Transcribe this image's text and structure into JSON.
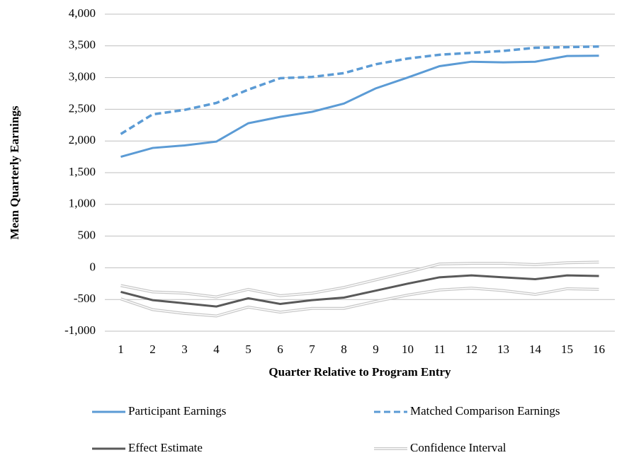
{
  "chart_data": {
    "type": "line",
    "y_label": "Mean Quarterly Earnings",
    "x_label": "Quarter Relative to Program Entry",
    "categories": [
      "1",
      "2",
      "3",
      "4",
      "5",
      "6",
      "7",
      "8",
      "9",
      "10",
      "11",
      "12",
      "13",
      "14",
      "15",
      "16"
    ],
    "ylim": [
      -1000,
      4000
    ],
    "yticks": [
      {
        "value": -1000,
        "label": "-1,000"
      },
      -500,
      0,
      500,
      {
        "value": 1000,
        "label": "1,000"
      },
      {
        "value": 1500,
        "label": "1,500"
      },
      {
        "value": 2000,
        "label": "2,000"
      },
      {
        "value": 2500,
        "label": "2,500"
      },
      {
        "value": 3000,
        "label": "3,000"
      },
      {
        "value": 3500,
        "label": "3,500"
      },
      {
        "value": 4000,
        "label": "4,000"
      }
    ],
    "grid": true,
    "series": [
      {
        "name": "Participant Earnings",
        "color": "#5b9bd5",
        "style": "solid",
        "values": [
          1750,
          1890,
          1930,
          1990,
          2280,
          2380,
          2460,
          2590,
          2830,
          3000,
          3180,
          3250,
          3240,
          3250,
          3340,
          3345
        ]
      },
      {
        "name": "Matched Comparison Earnings",
        "color": "#5b9bd5",
        "style": "dashed",
        "values": [
          2110,
          2420,
          2490,
          2600,
          2810,
          2990,
          3010,
          3070,
          3210,
          3300,
          3360,
          3390,
          3420,
          3470,
          3480,
          3490
        ]
      },
      {
        "name": "Effect Estimate",
        "color": "#595959",
        "style": "solid",
        "values": [
          -380,
          -510,
          -560,
          -610,
          -480,
          -570,
          -510,
          -470,
          -360,
          -250,
          -150,
          -120,
          -150,
          -180,
          -120,
          -130
        ]
      },
      {
        "name": "Confidence Interval",
        "color": "#c8c8c8",
        "style": "double",
        "values": [
          -280,
          -380,
          -400,
          -460,
          -340,
          -440,
          -400,
          -310,
          -190,
          -70,
          60,
          70,
          70,
          50,
          80,
          90
        ],
        "lower": [
          -490,
          -660,
          -720,
          -760,
          -620,
          -700,
          -640,
          -640,
          -530,
          -430,
          -350,
          -320,
          -360,
          -420,
          -330,
          -340
        ]
      }
    ]
  }
}
